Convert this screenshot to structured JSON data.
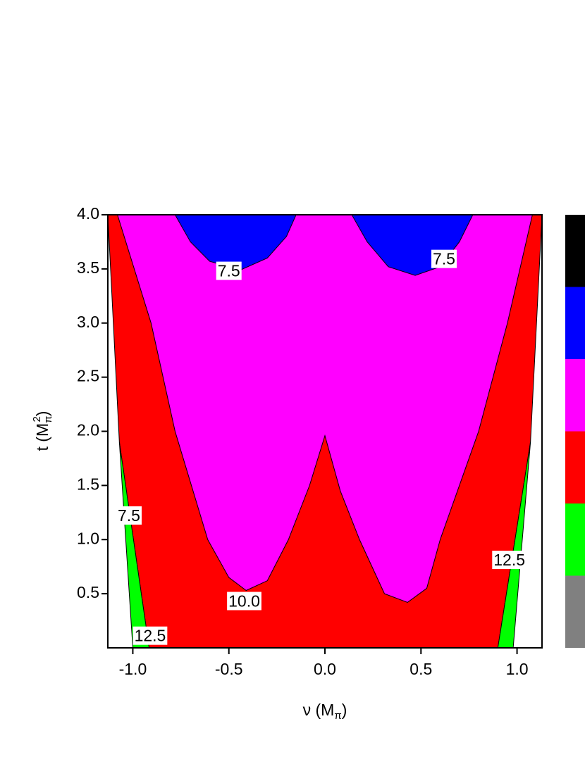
{
  "chart_data": {
    "type": "contour",
    "x_label": [
      "ν  (M",
      "π",
      ")"
    ],
    "y_label": [
      "t  (M",
      "π",
      "2",
      ")"
    ],
    "xlim": [
      -1.13,
      1.13
    ],
    "ylim": [
      0,
      4
    ],
    "xticks": [
      {
        "value": -1,
        "label": "-1.0"
      },
      {
        "value": -0.5,
        "label": "-0.5"
      },
      {
        "value": 0,
        "label": "0.0"
      },
      0.5,
      {
        "value": 1,
        "label": "1.0"
      }
    ],
    "yticks": [
      0.5,
      {
        "value": 1,
        "label": "1.0"
      },
      1.5,
      {
        "value": 2,
        "label": "2.0"
      },
      2.5,
      {
        "value": 3,
        "label": "3.0"
      },
      3.5,
      {
        "value": 4,
        "label": "4.0"
      }
    ],
    "regions": [
      {
        "color": "#ff0000",
        "points": [
          [
            -1.13,
            4
          ],
          [
            1.13,
            4
          ],
          [
            1.07,
            1.9
          ],
          [
            0.9,
            0
          ],
          [
            -0.915,
            0
          ],
          [
            -1.07,
            1.9
          ]
        ]
      },
      {
        "color": "#00ff00",
        "points": [
          [
            -1.07,
            1.9
          ],
          [
            -1.0,
            0
          ],
          [
            -0.915,
            0
          ]
        ]
      },
      {
        "color": "#00ff00",
        "points": [
          [
            1.07,
            1.9
          ],
          [
            0.98,
            0
          ],
          [
            0.9,
            0
          ]
        ]
      },
      {
        "color": "#ff00ff",
        "points": [
          [
            -1.08,
            4
          ],
          [
            -0.905,
            3.0
          ],
          [
            -0.78,
            2.0
          ],
          [
            -0.61,
            1.0
          ],
          [
            -0.5,
            0.65
          ],
          [
            -0.41,
            0.53
          ],
          [
            -0.3,
            0.62
          ],
          [
            -0.19,
            1.0
          ],
          [
            -0.08,
            1.5
          ],
          [
            0,
            1.96
          ],
          [
            0.08,
            1.45
          ],
          [
            0.18,
            1.0
          ],
          [
            0.31,
            0.5
          ],
          [
            0.43,
            0.42
          ],
          [
            0.53,
            0.55
          ],
          [
            0.6,
            1.0
          ],
          [
            0.8,
            2.0
          ],
          [
            0.95,
            3.0
          ],
          [
            1.08,
            4
          ]
        ]
      },
      {
        "color": "#0000ff",
        "points": [
          [
            -0.78,
            4
          ],
          [
            -0.7,
            3.75
          ],
          [
            -0.6,
            3.57
          ],
          [
            -0.44,
            3.49
          ],
          [
            -0.3,
            3.6
          ],
          [
            -0.2,
            3.8
          ],
          [
            -0.15,
            4
          ]
        ]
      },
      {
        "color": "#0000ff",
        "points": [
          [
            0.14,
            4
          ],
          [
            0.22,
            3.75
          ],
          [
            0.33,
            3.52
          ],
          [
            0.47,
            3.44
          ],
          [
            0.6,
            3.52
          ],
          [
            0.7,
            3.75
          ],
          [
            0.77,
            4
          ]
        ]
      }
    ],
    "contour_labels": [
      {
        "text": "7.5",
        "x": -0.5,
        "y": 3.47
      },
      {
        "text": "7.5",
        "x": 0.62,
        "y": 3.58
      },
      {
        "text": "7.5",
        "x": -1.02,
        "y": 1.21
      },
      {
        "text": "10.0",
        "x": -0.42,
        "y": 0.42
      },
      {
        "text": "12.5",
        "x": -0.91,
        "y": 0.1
      },
      {
        "text": "12.5",
        "x": 0.96,
        "y": 0.8
      }
    ],
    "colorbar_colors": [
      "#000000",
      "#0000ff",
      "#ff00ff",
      "#ff0000",
      "#00ff00",
      "#808080"
    ]
  }
}
